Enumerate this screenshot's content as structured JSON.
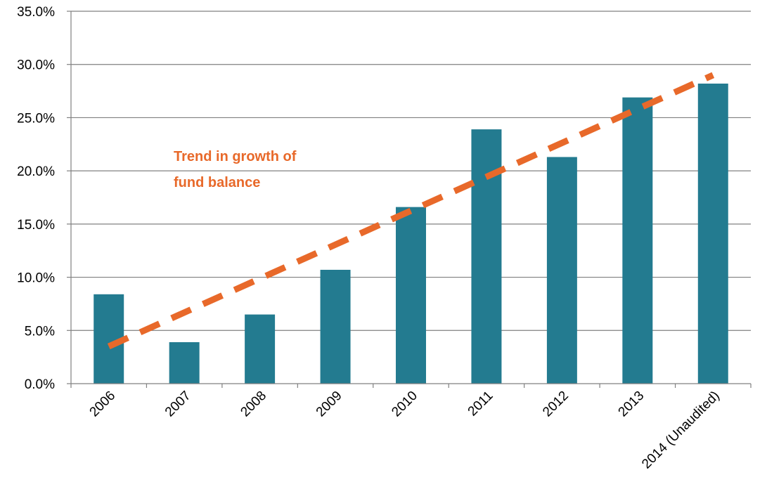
{
  "chart_data": {
    "type": "bar",
    "categories": [
      "2006",
      "2007",
      "2008",
      "2009",
      "2010",
      "2011",
      "2012",
      "2013",
      "2014 (Unaudited)"
    ],
    "series": [
      {
        "values": [
          8.4,
          3.9,
          6.5,
          10.7,
          16.6,
          23.9,
          21.3,
          26.9,
          28.2
        ]
      }
    ],
    "trendline": {
      "start": 3.5,
      "end": 29.0
    },
    "y_tick_labels": [
      "0.0%",
      "5.0%",
      "10.0%",
      "15.0%",
      "20.0%",
      "25.0%",
      "30.0%",
      "35.0%"
    ],
    "ylim": [
      0,
      35
    ],
    "y_unit": "%",
    "grid": true,
    "annotation": [
      "Trend in growth of",
      "fund balance"
    ],
    "colors": {
      "bar": "#237b90",
      "trendline": "#e8692a",
      "annotation": "#e8692a",
      "grid": "#808080"
    }
  }
}
